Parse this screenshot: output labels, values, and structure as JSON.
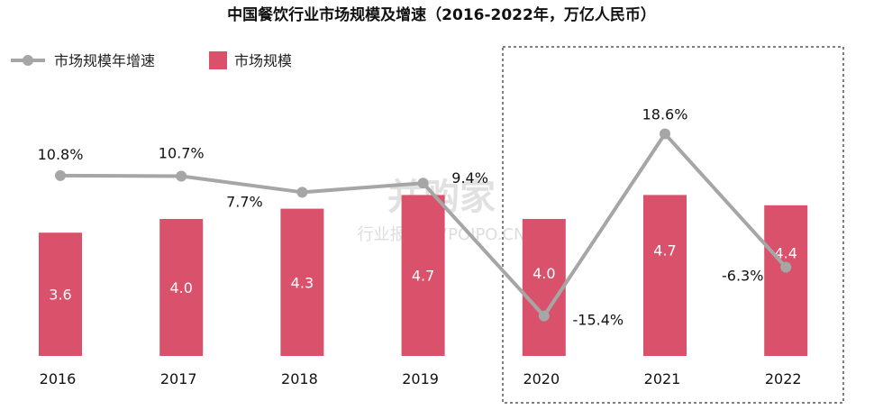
{
  "chart_data": {
    "type": "bar",
    "title": "中国餐饮行业市场规模及增速（2016-2022年，万亿人民币）",
    "categories": [
      "2016",
      "2017",
      "2018",
      "2019",
      "2020",
      "2021",
      "2022"
    ],
    "series": [
      {
        "name": "市场规模",
        "type": "bar",
        "values": [
          3.6,
          4.0,
          4.3,
          4.7,
          4.0,
          4.7,
          4.4
        ],
        "labels": [
          "3.6",
          "4.0",
          "4.3",
          "4.7",
          "4.0",
          "4.7",
          "4.4"
        ],
        "color": "#d9516b"
      },
      {
        "name": "市场规模年增速",
        "type": "line",
        "values": [
          10.8,
          10.7,
          7.7,
          9.4,
          -15.4,
          18.6,
          -6.3
        ],
        "labels": [
          "10.8%",
          "10.7%",
          "7.7%",
          "9.4%",
          "-15.4%",
          "18.6%",
          "-6.3%"
        ],
        "color": "#a6a6a6"
      }
    ],
    "legend": "top-left",
    "highlight": [
      "2020",
      "2021",
      "2022"
    ],
    "watermark": [
      "并购家",
      "行业报告 · 7POIPO.CN"
    ]
  }
}
